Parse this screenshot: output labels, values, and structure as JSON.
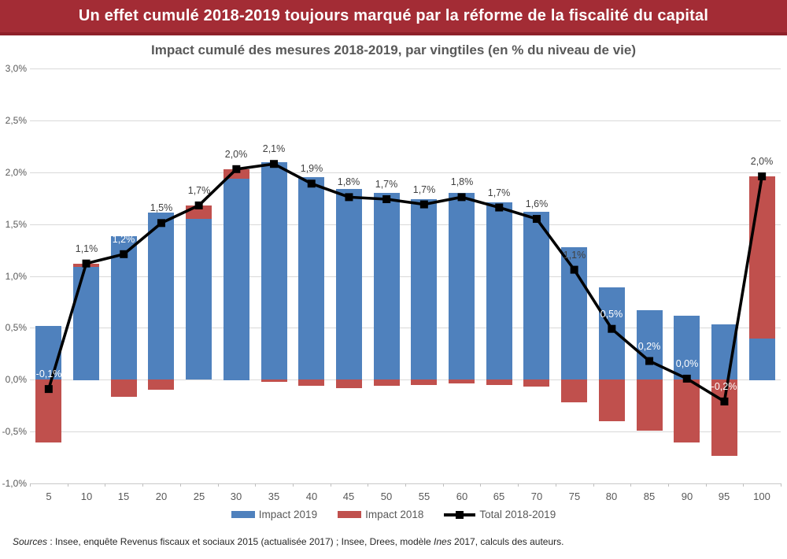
{
  "banner": {
    "title": "Un effet cumulé 2018-2019 toujours marqué par la réforme de la fiscalité du capital",
    "bg_color": "#A32C35",
    "text_color": "#FFFFFF"
  },
  "subtitle": "Impact cumulé des mesures 2018-2019, par vingtiles (en % du niveau de vie)",
  "chart_data": {
    "type": "bar",
    "subtype": "stacked-bars-with-line",
    "title": "Impact cumulé des mesures 2018-2019, par vingtiles (en % du niveau de vie)",
    "categories": [
      5,
      10,
      15,
      20,
      25,
      30,
      35,
      40,
      45,
      50,
      55,
      60,
      65,
      70,
      75,
      80,
      85,
      90,
      95,
      100
    ],
    "xlabel": "",
    "ylabel": "",
    "ylim": [
      -1.0,
      3.0
    ],
    "grid": true,
    "legend_position": "bottom",
    "y_ticks": [
      {
        "value": 3.0,
        "label": "3,0%"
      },
      {
        "value": 2.5,
        "label": "2,5%"
      },
      {
        "value": 2.0,
        "label": "2,0%"
      },
      {
        "value": 1.5,
        "label": "1,5%"
      },
      {
        "value": 1.0,
        "label": "1,0%"
      },
      {
        "value": 0.5,
        "label": "0,5%"
      },
      {
        "value": 0.0,
        "label": "0,0%"
      },
      {
        "value": -0.5,
        "label": "-0,5%"
      },
      {
        "value": -1.0,
        "label": "-1,0%"
      }
    ],
    "series": [
      {
        "name": "Impact 2019",
        "type": "bar",
        "color": "#4F81BD",
        "values": [
          0.52,
          1.09,
          1.38,
          1.61,
          1.55,
          1.94,
          2.1,
          1.95,
          1.84,
          1.8,
          1.74,
          1.8,
          1.71,
          1.62,
          1.28,
          0.89,
          0.67,
          0.62,
          0.53,
          0.4
        ]
      },
      {
        "name": "Impact 2018",
        "type": "bar",
        "color": "#C0504D",
        "values": [
          -0.61,
          0.03,
          -0.17,
          -0.1,
          0.13,
          0.09,
          -0.02,
          -0.06,
          -0.08,
          -0.06,
          -0.05,
          -0.04,
          -0.05,
          -0.07,
          -0.22,
          -0.4,
          -0.49,
          -0.61,
          -0.74,
          1.56
        ]
      },
      {
        "name": "Total 2018-2019",
        "type": "line",
        "color": "#000000",
        "values": [
          -0.09,
          1.12,
          1.21,
          1.51,
          1.68,
          2.03,
          2.08,
          1.89,
          1.76,
          1.74,
          1.69,
          1.76,
          1.66,
          1.55,
          1.06,
          0.49,
          0.18,
          0.01,
          -0.21,
          1.96
        ],
        "point_labels": [
          "-0,1%",
          "1,1%",
          "1,2%",
          "1,5%",
          "1,7%",
          "2,0%",
          "2,1%",
          "1,9%",
          "1,8%",
          "1,7%",
          "1,7%",
          "1,8%",
          "1,7%",
          "1,6%",
          "1,1%",
          "0,5%",
          "0,2%",
          "0,0%",
          "-0,2%",
          "2,0%"
        ],
        "point_label_colors": [
          "#FFFFFF",
          "#404040",
          "#FFFFFF",
          "#404040",
          "#404040",
          "#404040",
          "#404040",
          "#404040",
          "#404040",
          "#404040",
          "#404040",
          "#404040",
          "#404040",
          "#404040",
          "#404040",
          "#FFFFFF",
          "#FFFFFF",
          "#FFFFFF",
          "#FFFFFF",
          "#404040"
        ]
      }
    ],
    "colors": {
      "gridline": "#D9D9D9",
      "axis_text": "#595959",
      "data_label_dark": "#404040",
      "data_label_light": "#FFFFFF"
    }
  },
  "sources": {
    "prefix_italic": "Sources",
    "separator": " : ",
    "text_before_ines": "Insee, enquête Revenus fiscaux et sociaux 2015 (actualisée 2017) ; Insee, Drees, modèle ",
    "ines_italic": "Ines",
    "text_after_ines": " 2017, calculs des auteurs."
  }
}
